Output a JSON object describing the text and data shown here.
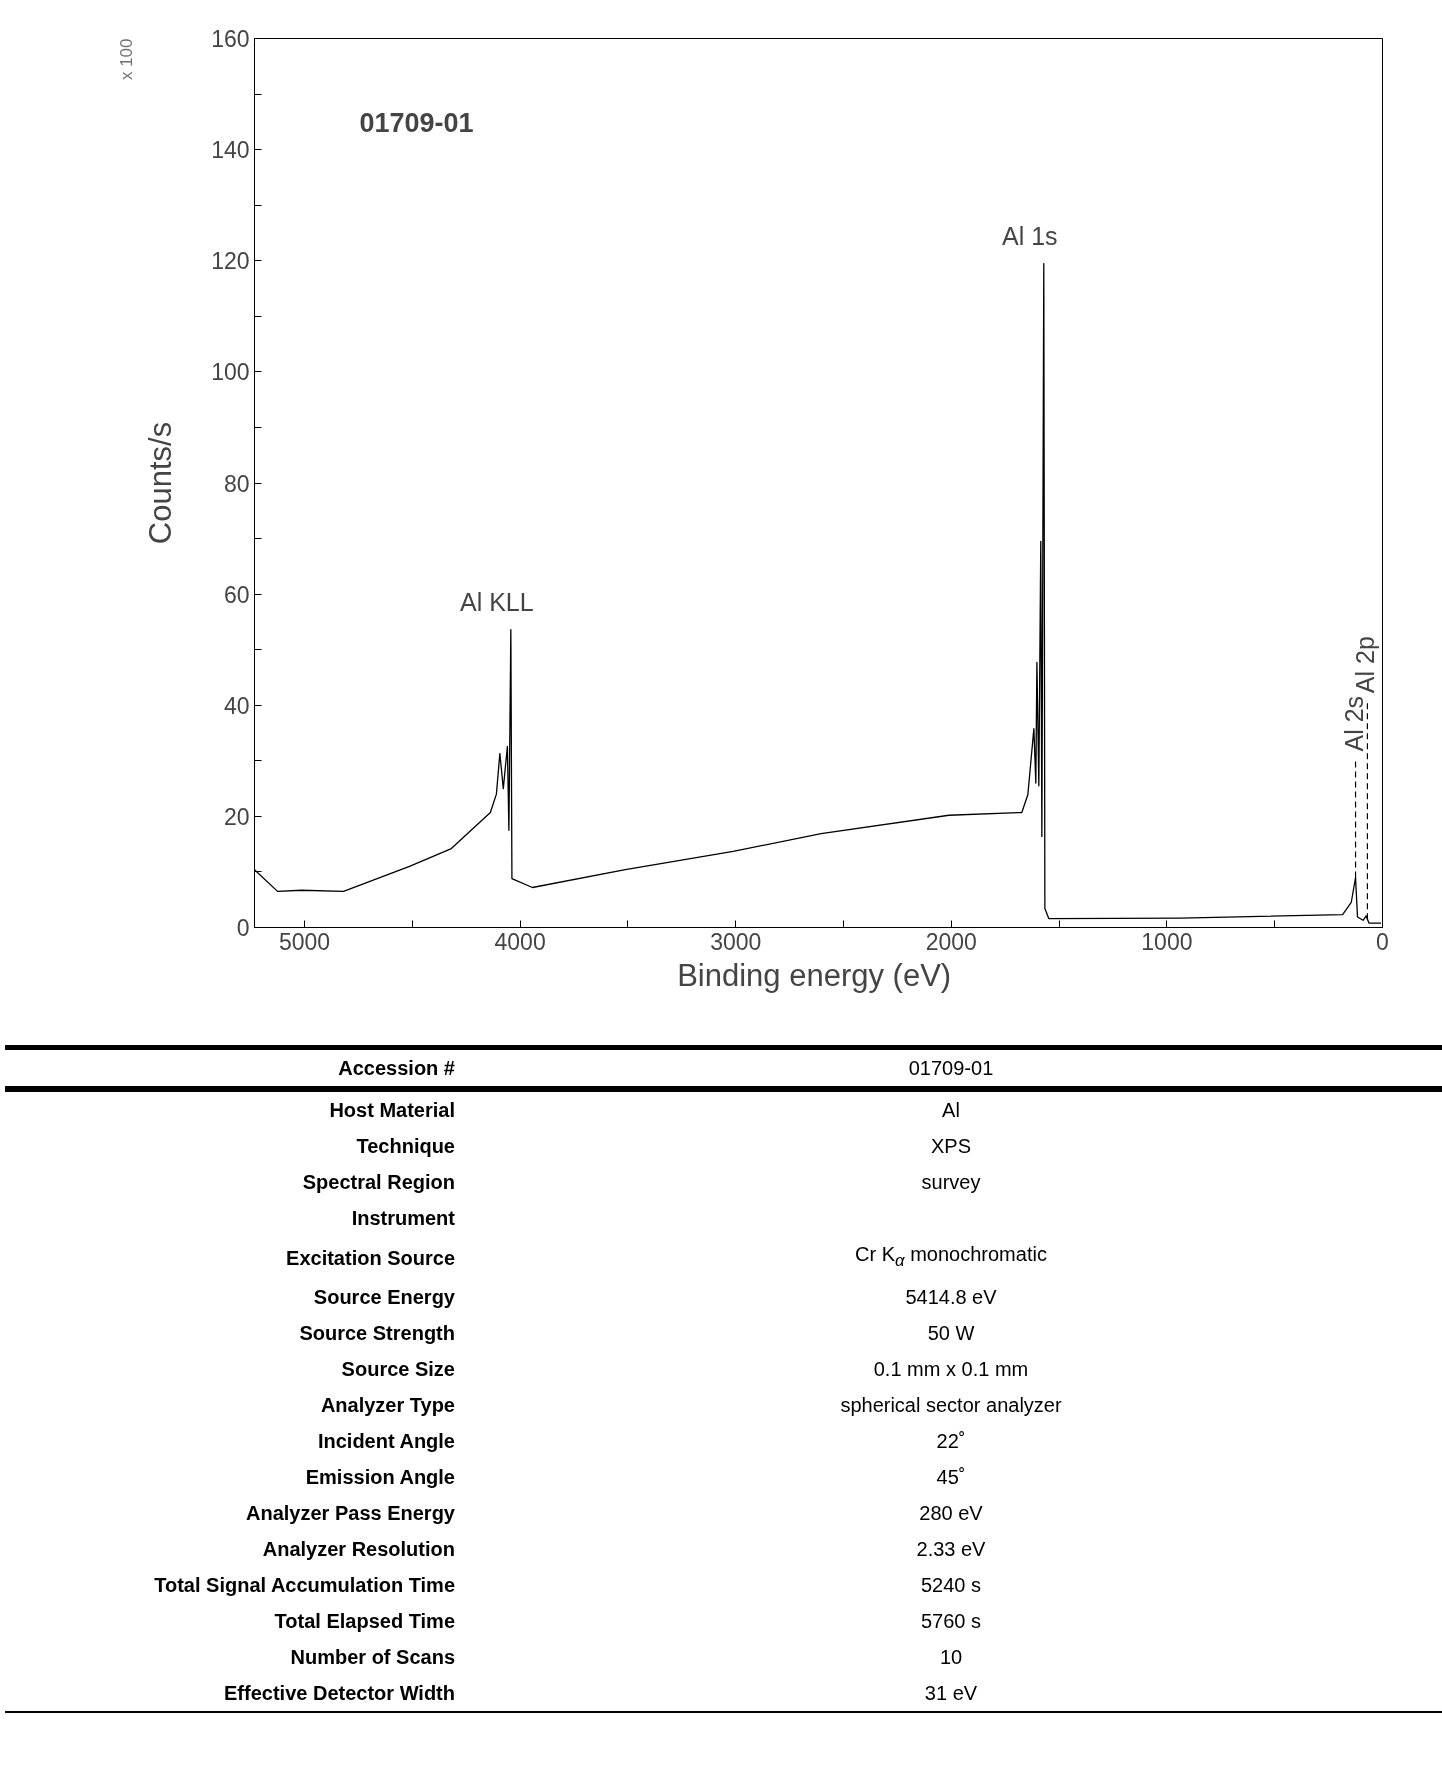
{
  "chart_data": {
    "type": "line",
    "title": "01709-01",
    "xlabel": "Binding energy  (eV)",
    "ylabel": "Counts/s",
    "x": [
      5232,
      5125,
      5014,
      4819,
      4513,
      4319,
      4138,
      4110,
      4094,
      4078,
      4059,
      4052,
      4043,
      4038,
      3943,
      3512,
      3012,
      2604,
      2011,
      1673,
      1645,
      1617,
      1608,
      1603,
      1594,
      1585,
      1580,
      1571,
      1566,
      1548,
      936,
      185,
      145,
      125,
      116,
      90,
      76,
      63,
      7
    ],
    "series": [
      {
        "color": "#000000",
        "values": [
          10.4,
          6.5,
          6.7,
          6.5,
          11.0,
          14.2,
          20.7,
          24.0,
          31.3,
          25.0,
          32.6,
          17.5,
          53.6,
          8.8,
          7.2,
          10.4,
          13.7,
          16.9,
          20.2,
          20.7,
          23.9,
          35.8,
          26.0,
          47.7,
          25.5,
          69.5,
          16.4,
          119.5,
          3.4,
          1.6,
          1.7,
          2.3,
          4.5,
          9.0,
          1.9,
          1.3,
          2.1,
          0.8,
          0.8
        ]
      }
    ],
    "xlim": [
      5232,
      0
    ],
    "xticks": [
      5000,
      {
        "value": 4500,
        "label": null
      },
      4000,
      {
        "value": 3500,
        "label": null
      },
      3000,
      {
        "value": 2500,
        "label": null
      },
      2000,
      {
        "value": 1500,
        "label": null
      },
      1000,
      {
        "value": 500,
        "label": null
      },
      0
    ],
    "ylim": [
      0,
      160
    ],
    "yticks": [
      0,
      {
        "value": 10,
        "label": null
      },
      20,
      {
        "value": 30,
        "label": null
      },
      40,
      {
        "value": 50,
        "label": null
      },
      60,
      {
        "value": 70,
        "label": null
      },
      80,
      {
        "value": 90,
        "label": null
      },
      100,
      {
        "value": 110,
        "label": null
      },
      120,
      {
        "value": 130,
        "label": null
      },
      140,
      {
        "value": 150,
        "label": null
      },
      160
    ],
    "grid": false,
    "marker": "none",
    "line_style": "solid",
    "ref_lines": [
      {
        "axis": "x",
        "value": 125,
        "label": "Al 2s",
        "line_style": "dashed",
        "color": "#000000"
      },
      {
        "axis": "x",
        "value": 70,
        "label": "Al 2p",
        "line_style": "dashed",
        "color": "#000000"
      }
    ],
    "annotations": [
      {
        "text": "Al KLL",
        "x": 4043,
        "y": 53.6
      },
      {
        "text": "Al 1s",
        "x": 1571,
        "y": 119.5
      },
      "x 100",
      "Accession #",
      "01709-01",
      "Host Material",
      "Al",
      "Technique",
      "XPS",
      "Spectral Region",
      "survey",
      "Instrument",
      null,
      "Excitation Source",
      "Cr K$_{α}$ monochromatic",
      "Source Energy",
      "5414.8 eV",
      "Source Strength",
      "50 W",
      "Source Size",
      "0.1 mm x 0.1 mm",
      "Analyzer Type",
      "spherical sector analyzer",
      "Incident Angle",
      "22˚",
      "Emission Angle",
      "45˚",
      "Analyzer Pass Energy",
      "280 eV",
      "Analyzer Resolution",
      "2.33 eV",
      "Total Signal Accumulation Time",
      "5240 s",
      "Total Elapsed Time",
      "5760 s",
      "Number of Scans",
      "10",
      "Effective Detector Width",
      "31 eV"
    ]
  }
}
